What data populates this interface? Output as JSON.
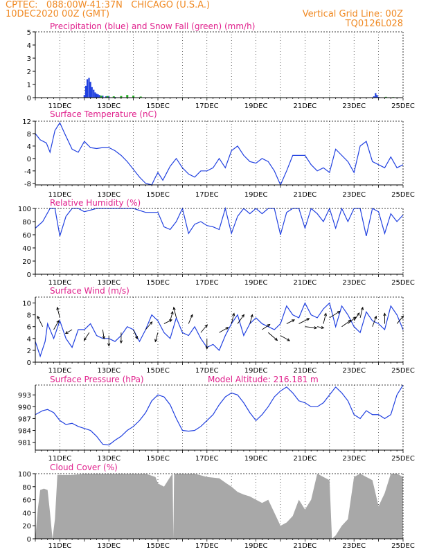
{
  "header": {
    "line1": "CPTEC:   088:00W-41:37N   CHICAGO (U.S.A.)",
    "line2_left": "10DEC2020 00Z (GMT)",
    "line2_right": "Vertical Grid Line: 00Z",
    "code": "TQ0126L028"
  },
  "colors": {
    "header": "#f08a24",
    "titles": "#e0208c",
    "series": "#2040e0",
    "snow": "#20b020",
    "cloud": "#a8a8a8",
    "vector": "#000000"
  },
  "x_axis": {
    "tick_labels": [
      "11DEC",
      "13DEC",
      "15DEC",
      "17DEC",
      "19DEC",
      "21DEC",
      "23DEC",
      "25DEC"
    ],
    "start_day": 10,
    "end_day": 25
  },
  "chart_data": [
    {
      "id": "precip",
      "type": "bar",
      "title": "Precipitation (blue) and Snow Fall (green) (mm/h)",
      "ylim": [
        0,
        5
      ],
      "yticks": [
        0,
        1,
        2,
        3,
        4,
        5
      ],
      "series": [
        {
          "name": "Precipitation",
          "color": "#2040e0",
          "x": [
            12.0,
            12.06,
            12.12,
            12.19,
            12.25,
            12.31,
            12.38,
            12.44,
            12.5,
            12.56,
            12.62,
            12.75,
            12.88,
            13.0,
            13.25,
            13.5,
            23.81,
            23.88,
            23.94,
            24.0
          ],
          "values": [
            0.2,
            0.9,
            1.4,
            1.5,
            1.2,
            0.8,
            0.6,
            0.4,
            0.3,
            0.25,
            0.2,
            0.15,
            0.1,
            0.1,
            0.05,
            0.05,
            0.1,
            0.35,
            0.2,
            0.05
          ]
        },
        {
          "name": "Snow Fall",
          "color": "#20b020",
          "x": [
            12.69,
            12.94,
            13.2,
            13.5,
            13.75,
            14.0,
            14.3,
            15.0,
            16.0,
            17.0,
            18.0,
            19.0,
            20.0,
            21.0,
            22.0,
            23.0,
            24.3,
            24.6
          ],
          "values": [
            0.15,
            0.12,
            0.1,
            0.12,
            0.2,
            0.15,
            0.08,
            0.03,
            0.03,
            0.03,
            0.03,
            0.03,
            0.03,
            0.03,
            0.03,
            0.03,
            0.06,
            0.04
          ]
        }
      ]
    },
    {
      "id": "temp",
      "type": "line",
      "title": "Surface Temperature (nC)",
      "ylim": [
        -8.5,
        12
      ],
      "yticks": [
        -8,
        -4,
        0,
        4,
        8,
        12
      ],
      "series": [
        {
          "name": "Surface Temperature",
          "color": "#2040e0",
          "x": [
            10.0,
            10.2,
            10.45,
            10.6,
            10.8,
            11.0,
            11.2,
            11.5,
            11.75,
            12.0,
            12.25,
            12.5,
            12.75,
            13.0,
            13.25,
            13.5,
            13.75,
            14.0,
            14.25,
            14.5,
            14.75,
            14.9,
            15.0,
            15.2,
            15.3,
            15.5,
            15.75,
            16.0,
            16.25,
            16.5,
            16.75,
            17.0,
            17.25,
            17.5,
            17.75,
            18.0,
            18.25,
            18.5,
            18.75,
            19.0,
            19.25,
            19.5,
            19.75,
            20.0,
            20.25,
            20.5,
            20.75,
            21.0,
            21.25,
            21.5,
            21.75,
            22.0,
            22.25,
            22.5,
            22.75,
            23.0,
            23.25,
            23.5,
            23.75,
            24.0,
            24.25,
            24.5,
            24.75,
            25.0
          ],
          "values": [
            8,
            6,
            5,
            2,
            9,
            11.5,
            8,
            3,
            2,
            5.5,
            3.5,
            3.2,
            3.5,
            3.5,
            2.5,
            1,
            -1,
            -3.5,
            -6,
            -8,
            -8.5,
            -6,
            -4.5,
            -7,
            -5.5,
            -2.5,
            0,
            -3,
            -5,
            -6,
            -4,
            -4,
            -3,
            0,
            -3,
            2.5,
            4,
            1,
            -1,
            -1.5,
            0,
            -1,
            -4,
            -8.5,
            -4,
            1,
            1,
            1,
            -2,
            -4,
            -3,
            -4.5,
            3,
            1,
            -1,
            -4.5,
            4,
            5.5,
            -1,
            -2,
            -3,
            0.5,
            -3,
            -2
          ]
        }
      ]
    },
    {
      "id": "rh",
      "type": "line",
      "title": "Relative Humidity (%)",
      "ylim": [
        0,
        100
      ],
      "yticks": [
        0,
        20,
        40,
        60,
        80,
        100
      ],
      "series": [
        {
          "name": "Relative Humidity",
          "color": "#2040e0",
          "x": [
            10.0,
            10.3,
            10.6,
            10.8,
            11.0,
            11.25,
            11.5,
            11.75,
            12.0,
            12.5,
            13.0,
            13.5,
            14.0,
            14.5,
            15.0,
            15.25,
            15.5,
            15.75,
            16.0,
            16.25,
            16.5,
            16.75,
            17.0,
            17.25,
            17.5,
            17.75,
            18.0,
            18.25,
            18.5,
            18.75,
            19.0,
            19.25,
            19.5,
            19.75,
            20.0,
            20.25,
            20.5,
            20.75,
            21.0,
            21.25,
            21.5,
            21.75,
            22.0,
            22.25,
            22.5,
            22.75,
            23.0,
            23.25,
            23.5,
            23.75,
            24.0,
            24.25,
            24.5,
            24.75,
            25.0
          ],
          "values": [
            70,
            80,
            100,
            100,
            58,
            88,
            100,
            100,
            95,
            100,
            100,
            100,
            100,
            94,
            94,
            72,
            68,
            80,
            100,
            62,
            76,
            80,
            74,
            72,
            68,
            100,
            62,
            88,
            100,
            92,
            100,
            92,
            100,
            100,
            60,
            94,
            100,
            100,
            70,
            100,
            92,
            80,
            100,
            70,
            100,
            80,
            100,
            100,
            58,
            100,
            95,
            62,
            92,
            80,
            90
          ]
        }
      ]
    },
    {
      "id": "wind",
      "type": "line",
      "title": "Surface Wind (m/s)",
      "ylim": [
        0,
        11
      ],
      "yticks": [
        0,
        2,
        4,
        6,
        8,
        10
      ],
      "series": [
        {
          "name": "Surface Wind",
          "color": "#2040e0",
          "x": [
            10.0,
            10.2,
            10.4,
            10.5,
            10.75,
            11.0,
            11.25,
            11.5,
            11.75,
            12.0,
            12.25,
            12.5,
            12.75,
            13.0,
            13.25,
            13.5,
            13.75,
            14.0,
            14.25,
            14.5,
            14.75,
            15.0,
            15.25,
            15.5,
            15.75,
            16.0,
            16.25,
            16.5,
            16.75,
            17.0,
            17.25,
            17.5,
            17.75,
            18.0,
            18.25,
            18.5,
            18.75,
            19.0,
            19.25,
            19.5,
            19.75,
            20.0,
            20.25,
            20.5,
            20.75,
            21.0,
            21.25,
            21.5,
            21.75,
            22.0,
            22.25,
            22.5,
            22.75,
            23.0,
            23.25,
            23.5,
            23.75,
            24.0,
            24.25,
            24.5,
            24.75,
            25.0
          ],
          "values": [
            3.5,
            1,
            3.5,
            6.5,
            4,
            7,
            4,
            2.5,
            5.5,
            5.5,
            6.5,
            4.5,
            4,
            4,
            3.5,
            4.5,
            6,
            5.5,
            3.5,
            5.5,
            8,
            7,
            5,
            4,
            7.5,
            5,
            4.5,
            6,
            4,
            2.5,
            3,
            2,
            4.5,
            6.5,
            8,
            4.5,
            6.5,
            7.5,
            6.5,
            6,
            5.5,
            6.5,
            9.5,
            8,
            7.5,
            10,
            8,
            7.5,
            9,
            10,
            6,
            9.5,
            8,
            6,
            5,
            8.5,
            7,
            6.5,
            5.5,
            9.5,
            8,
            5.5
          ]
        }
      ],
      "vectors": [
        {
          "x": 10.3,
          "y": 6.0,
          "dx": -4,
          "dy": 8
        },
        {
          "x": 10.75,
          "y": 5.5,
          "dx": 4,
          "dy": 7
        },
        {
          "x": 11.0,
          "y": 7.5,
          "dx": -2,
          "dy": 8
        },
        {
          "x": 11.5,
          "y": 5.5,
          "dx": -5,
          "dy": -3
        },
        {
          "x": 12.2,
          "y": 5.0,
          "dx": -4,
          "dy": -6
        },
        {
          "x": 12.75,
          "y": 5.5,
          "dx": 1,
          "dy": -7
        },
        {
          "x": 13.0,
          "y": 4.5,
          "dx": 0,
          "dy": -8
        },
        {
          "x": 13.5,
          "y": 5.0,
          "dx": 0,
          "dy": -8
        },
        {
          "x": 14.0,
          "y": 5.5,
          "dx": 3,
          "dy": -7
        },
        {
          "x": 14.5,
          "y": 5.5,
          "dx": 5,
          "dy": 6
        },
        {
          "x": 15.0,
          "y": 5.0,
          "dx": -2,
          "dy": -7
        },
        {
          "x": 15.25,
          "y": 6.5,
          "dx": 6,
          "dy": 3
        },
        {
          "x": 15.5,
          "y": 7.0,
          "dx": 2,
          "dy": 7
        },
        {
          "x": 15.75,
          "y": 7.5,
          "dx": -2,
          "dy": 8
        },
        {
          "x": 16.25,
          "y": 6.5,
          "dx": 3,
          "dy": 7
        },
        {
          "x": 16.75,
          "y": 5.0,
          "dx": 5,
          "dy": 6
        },
        {
          "x": 17.0,
          "y": 4.0,
          "dx": 0,
          "dy": -8
        },
        {
          "x": 17.5,
          "y": 5.0,
          "dx": 7,
          "dy": 4
        },
        {
          "x": 18.0,
          "y": 6.5,
          "dx": 2,
          "dy": 8
        },
        {
          "x": 18.25,
          "y": 6.5,
          "dx": 5,
          "dy": 7
        },
        {
          "x": 18.75,
          "y": 6.5,
          "dx": 2,
          "dy": 7
        },
        {
          "x": 19.25,
          "y": 5.5,
          "dx": 6,
          "dy": 4
        },
        {
          "x": 19.5,
          "y": 5.0,
          "dx": 7,
          "dy": -6
        },
        {
          "x": 20.0,
          "y": 4.5,
          "dx": 7,
          "dy": -4
        },
        {
          "x": 20.25,
          "y": 6.5,
          "dx": 6,
          "dy": 3
        },
        {
          "x": 20.75,
          "y": 6.5,
          "dx": 8,
          "dy": 4
        },
        {
          "x": 21.0,
          "y": 6.0,
          "dx": 9,
          "dy": -1
        },
        {
          "x": 21.5,
          "y": 6.0,
          "dx": 5,
          "dy": -1
        },
        {
          "x": 21.75,
          "y": 6.5,
          "dx": 2,
          "dy": 8
        },
        {
          "x": 22.0,
          "y": 7.5,
          "dx": 8,
          "dy": 5
        },
        {
          "x": 22.5,
          "y": 6.0,
          "dx": 7,
          "dy": 5
        },
        {
          "x": 22.75,
          "y": 6.5,
          "dx": 6,
          "dy": 5
        },
        {
          "x": 23.0,
          "y": 7.0,
          "dx": 4,
          "dy": 6
        },
        {
          "x": 23.25,
          "y": 7.5,
          "dx": 2,
          "dy": 8
        },
        {
          "x": 23.75,
          "y": 6.0,
          "dx": 3,
          "dy": 8
        },
        {
          "x": 24.25,
          "y": 6.5,
          "dx": 0,
          "dy": 8
        },
        {
          "x": 24.75,
          "y": 6.5,
          "dx": 5,
          "dy": 6
        }
      ]
    },
    {
      "id": "pres",
      "type": "line",
      "title": "Surface Pressure (hPa)",
      "annotation": "Model Altitude: 216.181 m",
      "ylim": [
        979,
        995.5
      ],
      "yticks": [
        981,
        984,
        987,
        990,
        993
      ],
      "series": [
        {
          "name": "Surface Pressure",
          "color": "#2040e0",
          "x": [
            10.0,
            10.3,
            10.5,
            10.75,
            11.0,
            11.25,
            11.5,
            11.75,
            12.0,
            12.25,
            12.5,
            12.75,
            13.0,
            13.25,
            13.5,
            13.75,
            14.0,
            14.25,
            14.5,
            14.75,
            15.0,
            15.25,
            15.5,
            15.75,
            16.0,
            16.25,
            16.5,
            16.75,
            17.0,
            17.25,
            17.5,
            17.75,
            18.0,
            18.25,
            18.5,
            18.75,
            19.0,
            19.25,
            19.5,
            19.75,
            20.0,
            20.25,
            20.5,
            20.75,
            21.0,
            21.25,
            21.5,
            21.75,
            22.0,
            22.25,
            22.5,
            22.75,
            23.0,
            23.25,
            23.5,
            23.75,
            24.0,
            24.25,
            24.5,
            24.75,
            25.0
          ],
          "values": [
            988,
            989,
            989.3,
            988.5,
            986.5,
            985.5,
            985.8,
            985,
            984.5,
            984,
            982.5,
            980.5,
            980.3,
            981.5,
            982.5,
            984,
            985,
            986.5,
            988.5,
            991.5,
            993,
            992.5,
            990.5,
            987,
            984,
            983.8,
            984,
            985,
            986.5,
            988,
            990.5,
            992.5,
            993.5,
            993,
            991,
            988.5,
            986.5,
            988,
            990,
            992.5,
            994,
            995,
            993.5,
            991.5,
            991,
            990,
            990,
            991,
            993,
            995,
            993.5,
            991.5,
            988,
            987,
            989,
            988,
            988,
            987,
            988,
            993,
            995.5
          ]
        }
      ]
    },
    {
      "id": "cloud",
      "type": "area",
      "title": "Cloud Cover (%)",
      "ylim": [
        0,
        100
      ],
      "yticks": [
        0,
        20,
        40,
        60,
        80,
        100
      ],
      "series": [
        {
          "name": "Cloud Cover",
          "color": "#a8a8a8",
          "x": [
            10.0,
            10.1,
            10.2,
            10.35,
            10.5,
            10.6,
            10.7,
            10.8,
            10.9,
            11.0,
            11.25,
            11.5,
            12.0,
            12.5,
            13.0,
            13.5,
            14.0,
            14.5,
            14.9,
            15.0,
            15.25,
            15.5,
            15.6,
            15.63,
            15.66,
            15.75,
            16.0,
            16.5,
            17.0,
            17.5,
            17.8,
            18.0,
            18.25,
            18.5,
            18.75,
            19.0,
            19.25,
            19.5,
            19.75,
            20.0,
            20.25,
            20.5,
            20.75,
            21.0,
            21.25,
            21.5,
            21.75,
            22.0,
            22.1,
            22.25,
            22.5,
            22.75,
            23.0,
            23.25,
            23.5,
            23.75,
            24.0,
            24.25,
            24.5,
            24.75,
            25.0
          ],
          "values": [
            0,
            45,
            75,
            77,
            75,
            40,
            0,
            30,
            98,
            98,
            98,
            98,
            100,
            100,
            100,
            100,
            100,
            100,
            95,
            85,
            80,
            95,
            100,
            0,
            100,
            100,
            100,
            100,
            95,
            93,
            85,
            80,
            72,
            68,
            65,
            60,
            55,
            60,
            40,
            20,
            25,
            35,
            60,
            45,
            60,
            100,
            95,
            90,
            0,
            5,
            20,
            30,
            95,
            100,
            95,
            90,
            50,
            70,
            100,
            100,
            95
          ]
        }
      ]
    }
  ]
}
